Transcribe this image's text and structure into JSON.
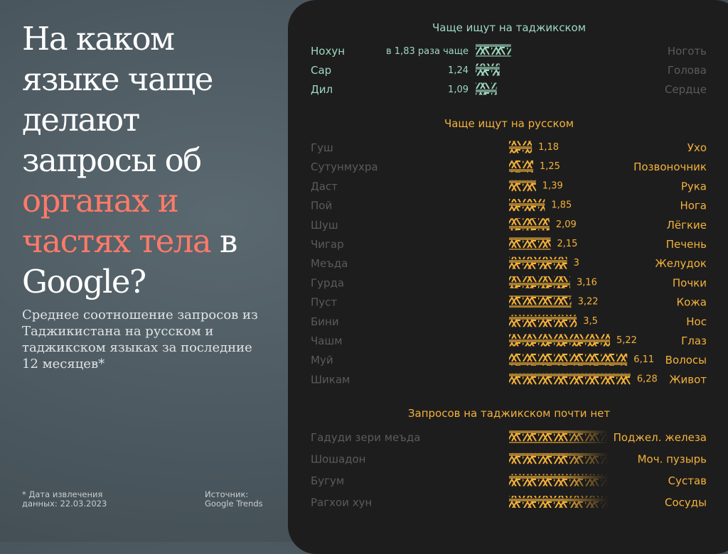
{
  "headline": {
    "part1": "На каком языке чаще делают запросы об",
    "highlight": "органах и частях тела",
    "part2": "в Google?"
  },
  "subtitle": "Среднее соотношение запросов из Таджикистана на русском и таджикском языках за последние 12 месяцев*",
  "footnote": {
    "date": "* Дата извлечения данных: 22.03.2023",
    "source": "Источник: Google Trends"
  },
  "colors": {
    "panel_bg": "#1d1d1d",
    "tajik": "#9fd8c0",
    "russian": "#f5b23a",
    "highlight": "#ff7a68",
    "muted": "#5b5b5b"
  },
  "chart_data": {
    "type": "bar",
    "title": "",
    "sections": [
      {
        "key": "tajik",
        "title": "Чаще ищут на таджикском",
        "ratio_prefix": "в",
        "ratio_suffix": "раза чаще",
        "items": [
          {
            "tajik": "Нохун",
            "russian": "Ноготь",
            "value": 1.83,
            "label": "1,83"
          },
          {
            "tajik": "Сар",
            "russian": "Голова",
            "value": 1.24,
            "label": "1,24"
          },
          {
            "tajik": "Дил",
            "russian": "Сердце",
            "value": 1.09,
            "label": "1,09"
          }
        ]
      },
      {
        "key": "russian",
        "title": "Чаще ищут на русском",
        "items": [
          {
            "tajik": "Гуш",
            "russian": "Ухо",
            "value": 1.18,
            "label": "1,18"
          },
          {
            "tajik": "Сутунмухра",
            "russian": "Позвоночник",
            "value": 1.25,
            "label": "1,25"
          },
          {
            "tajik": "Даст",
            "russian": "Рука",
            "value": 1.39,
            "label": "1,39"
          },
          {
            "tajik": "Пой",
            "russian": "Нога",
            "value": 1.85,
            "label": "1,85"
          },
          {
            "tajik": "Шуш",
            "russian": "Лёгкие",
            "value": 2.09,
            "label": "2,09"
          },
          {
            "tajik": "Чигар",
            "russian": "Печень",
            "value": 2.15,
            "label": "2,15"
          },
          {
            "tajik": "Меъда",
            "russian": "Желудок",
            "value": 3.0,
            "label": "3"
          },
          {
            "tajik": "Гурда",
            "russian": "Почки",
            "value": 3.16,
            "label": "3,16"
          },
          {
            "tajik": "Пуст",
            "russian": "Кожа",
            "value": 3.22,
            "label": "3,22"
          },
          {
            "tajik": "Бини",
            "russian": "Нос",
            "value": 3.5,
            "label": "3,5"
          },
          {
            "tajik": "Чашм",
            "russian": "Глаз",
            "value": 5.22,
            "label": "5,22"
          },
          {
            "tajik": "Муй",
            "russian": "Волосы",
            "value": 6.11,
            "label": "6,11"
          },
          {
            "tajik": "Шикам",
            "russian": "Живот",
            "value": 6.28,
            "label": "6,28"
          }
        ]
      },
      {
        "key": "none",
        "title": "Запросов на таджикском почти нет",
        "items": [
          {
            "tajik": "Гадуди зери меъда",
            "russian": "Поджел. железа"
          },
          {
            "tajik": "Шошадон",
            "russian": "Моч. пузырь"
          },
          {
            "tajik": "Бугум",
            "russian": "Сустав"
          },
          {
            "tajik": "Рагхои хун",
            "russian": "Сосуды"
          }
        ]
      }
    ]
  }
}
